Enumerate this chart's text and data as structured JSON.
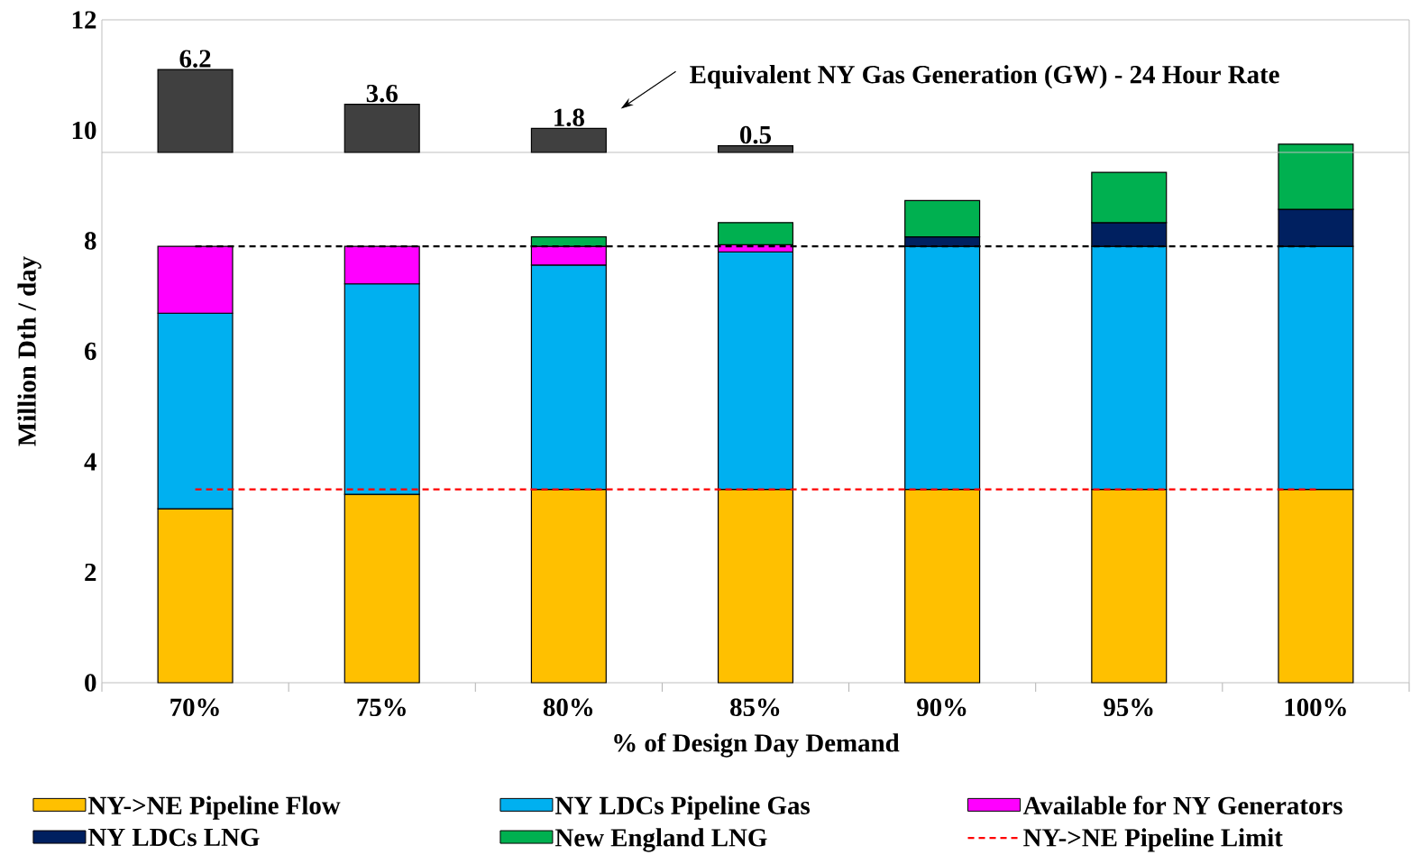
{
  "chart_data": [
    {
      "type": "bar",
      "stacked": true,
      "xlabel": "% of Design Day Demand",
      "ylabel": "Million Dth / day",
      "categories": [
        "70%",
        "75%",
        "80%",
        "85%",
        "90%",
        "95%",
        "100%"
      ],
      "ylim": [
        0,
        12
      ],
      "yticks": [
        0,
        2,
        4,
        6,
        8,
        10,
        12
      ],
      "legend": "bottom",
      "series": [
        {
          "name": "NY->NE Pipeline Flow",
          "color": "#ffc000",
          "values": [
            3.15,
            3.41,
            3.5,
            3.5,
            3.5,
            3.5,
            3.5
          ]
        },
        {
          "name": "NY LDCs Pipeline Gas",
          "color": "#00b0f0",
          "values": [
            3.54,
            3.81,
            4.06,
            4.3,
            4.4,
            4.4,
            4.4
          ]
        },
        {
          "name": "Available for NY Generators",
          "color": "#ff00ff",
          "values": [
            1.21,
            0.68,
            0.34,
            0.13,
            null,
            null,
            null
          ]
        },
        {
          "name": "NY LDCs LNG",
          "color": "#002060",
          "values": [
            null,
            null,
            null,
            null,
            0.17,
            0.43,
            0.67
          ]
        },
        {
          "name": "New England LNG",
          "color": "#00b050",
          "values": [
            null,
            null,
            0.17,
            0.4,
            0.66,
            0.91,
            1.18
          ]
        },
        {
          "name": "NY->NE Pipeline Limit",
          "type": "line",
          "line_style": "dashed",
          "color": "#ff0000",
          "values": [
            3.5,
            3.5,
            3.5,
            3.5,
            3.5,
            3.5,
            3.5
          ]
        },
        {
          "type": "line",
          "line_style": "dashed",
          "color": "#000000",
          "values": [
            7.9,
            7.9,
            7.9,
            7.9,
            7.9,
            7.9,
            7.9
          ]
        }
      ]
    },
    {
      "type": "bar",
      "title": "Equivalent NY Gas Generation (GW) - 24 Hour Rate",
      "categories": [
        null,
        null,
        null,
        null,
        null,
        null,
        null
      ],
      "tick_labels": false,
      "data_labels": true,
      "color": "#404040",
      "values": [
        6.2,
        3.6,
        1.8,
        0.5,
        null,
        null,
        null
      ]
    }
  ]
}
